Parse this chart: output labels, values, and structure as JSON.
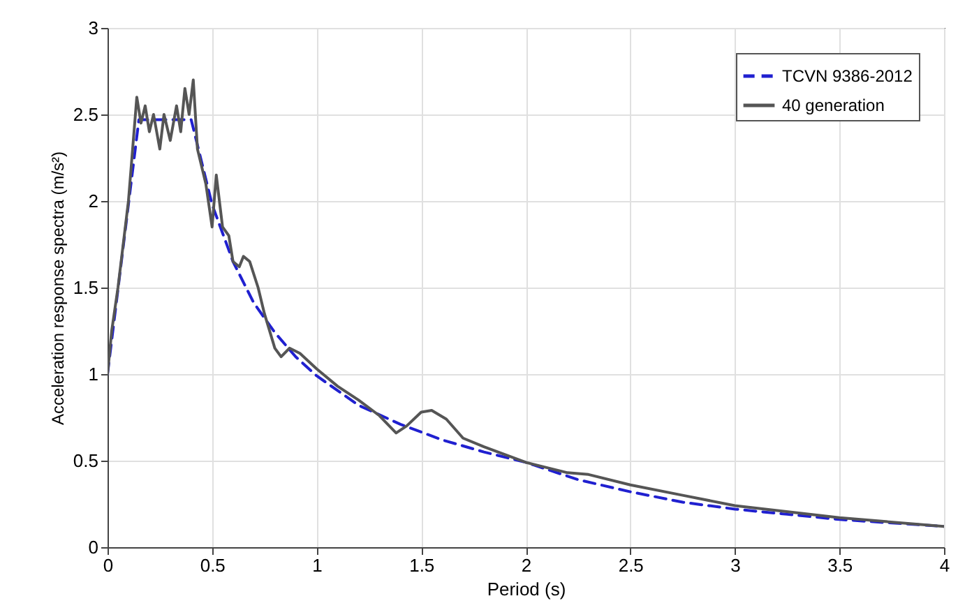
{
  "chart_data": {
    "type": "line",
    "xlabel": "Period (s)",
    "ylabel": "Acceleration response spectra (m/s²)",
    "xlim": [
      0,
      4
    ],
    "ylim": [
      0,
      3
    ],
    "xticks": [
      0,
      0.5,
      1,
      1.5,
      2,
      2.5,
      3,
      3.5,
      4
    ],
    "yticks": [
      0,
      0.5,
      1,
      1.5,
      2,
      2.5,
      3
    ],
    "grid": true,
    "legend": "top right",
    "series": [
      {
        "name": "TCVN 9386-2012",
        "color": "#2020d0",
        "line_style": "dashed",
        "x": [
          0,
          0.15,
          0.4,
          0.5,
          0.6,
          0.7,
          0.8,
          0.9,
          1.0,
          1.2,
          1.4,
          1.6,
          1.8,
          2.0,
          2.25,
          2.5,
          2.75,
          3.0,
          3.25,
          3.5,
          3.75,
          4.0
        ],
        "values": [
          1.0,
          2.47,
          2.47,
          1.98,
          1.65,
          1.41,
          1.24,
          1.1,
          0.99,
          0.82,
          0.71,
          0.62,
          0.55,
          0.49,
          0.39,
          0.32,
          0.26,
          0.22,
          0.19,
          0.16,
          0.14,
          0.12
        ]
      },
      {
        "name": "40 generation",
        "color": "#555555",
        "line_style": "solid",
        "x": [
          0,
          0.02,
          0.05,
          0.1,
          0.14,
          0.16,
          0.18,
          0.2,
          0.22,
          0.25,
          0.27,
          0.3,
          0.33,
          0.35,
          0.37,
          0.39,
          0.41,
          0.43,
          0.47,
          0.5,
          0.52,
          0.55,
          0.58,
          0.6,
          0.63,
          0.65,
          0.68,
          0.72,
          0.75,
          0.8,
          0.83,
          0.87,
          0.92,
          1.0,
          1.1,
          1.2,
          1.3,
          1.38,
          1.43,
          1.5,
          1.55,
          1.62,
          1.7,
          1.8,
          2.0,
          2.2,
          2.3,
          2.5,
          2.75,
          3.0,
          3.5,
          4.0
        ],
        "values": [
          1.0,
          1.25,
          1.5,
          2.0,
          2.6,
          2.45,
          2.55,
          2.4,
          2.5,
          2.3,
          2.5,
          2.35,
          2.55,
          2.4,
          2.65,
          2.5,
          2.7,
          2.3,
          2.1,
          1.85,
          2.15,
          1.85,
          1.8,
          1.65,
          1.62,
          1.68,
          1.65,
          1.5,
          1.35,
          1.15,
          1.1,
          1.15,
          1.12,
          1.03,
          0.93,
          0.85,
          0.76,
          0.66,
          0.7,
          0.78,
          0.79,
          0.74,
          0.63,
          0.58,
          0.49,
          0.43,
          0.42,
          0.36,
          0.3,
          0.24,
          0.17,
          0.12
        ]
      }
    ]
  }
}
